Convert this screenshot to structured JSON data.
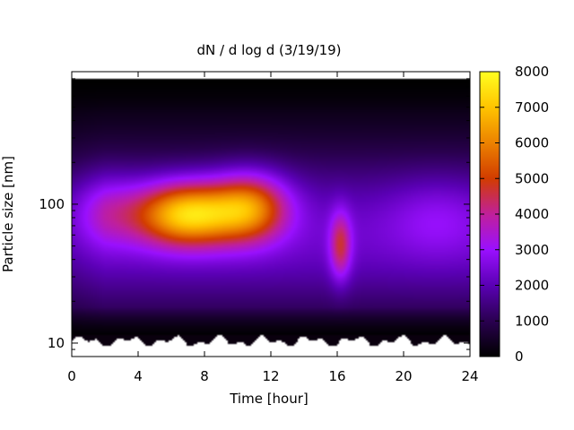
{
  "chart_data": {
    "type": "heatmap",
    "title": "dN / d log d (3/19/19)",
    "xlabel": "Time [hour]",
    "ylabel": "Particle size [nm]",
    "xlim": [
      0,
      24
    ],
    "ylim": [
      8,
      900
    ],
    "yscale": "log",
    "x_ticks": [
      0,
      4,
      8,
      12,
      16,
      20,
      24
    ],
    "y_ticks": [
      10,
      100
    ],
    "colorbar": {
      "min": 0,
      "max": 8000,
      "ticks": [
        0,
        1000,
        2000,
        3000,
        4000,
        5000,
        6000,
        7000,
        8000
      ],
      "colormap": [
        "#000000",
        "#2a0050",
        "#5a00b4",
        "#9a10ff",
        "#c0209a",
        "#d23c00",
        "#ec8200",
        "#ffc400",
        "#ffff20"
      ]
    },
    "features": [
      {
        "time": 7.0,
        "size_nm": 85,
        "peak_value": 7600
      },
      {
        "time": 10.5,
        "size_nm": 95,
        "peak_value": 6200
      },
      {
        "time": 2.0,
        "size_nm": 90,
        "peak_value": 3300
      },
      {
        "time": 16.2,
        "size_nm": 50,
        "peak_value": 4300
      },
      {
        "time": 22.0,
        "size_nm": 80,
        "peak_value": 2300
      }
    ],
    "grid": false,
    "legend": "colorbar-right"
  }
}
